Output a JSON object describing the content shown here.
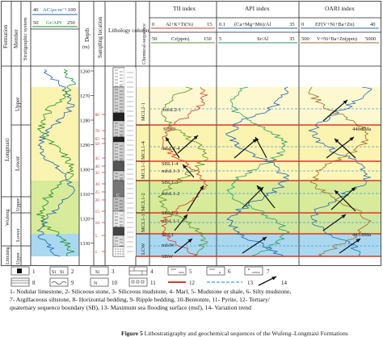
{
  "header": {
    "stratigraphic_system": "Stratigraphic system",
    "formation": "Formation",
    "member": "Member",
    "depth": "Depth",
    "depth_unit": "(m)",
    "sampling": "Sampling location",
    "lithology": "Lithology column",
    "chem_seq": "Chemical-sequence",
    "ac_label": "AC/μs·m⁻¹",
    "ac_min": "40",
    "ac_max": "100",
    "gr_label": "Gr/API",
    "gr_min": "50",
    "gr_max": "250"
  },
  "panels": [
    {
      "title": "TII index",
      "row1_left": "0",
      "row1_label": "Al+K+Ti(%)",
      "row1_right": "15",
      "row2_left": "50",
      "row2_label": "Cr(ppm)",
      "row2_right": "150"
    },
    {
      "title": "API index",
      "row1_left": "0.1",
      "row1_label": "(Ca+Mg+Mn)/Al",
      "row1_right": "35",
      "row2_left": "5",
      "row2_label": "Sr/Al",
      "row2_right": "35"
    },
    {
      "title": "OARI index",
      "row1_left": "0",
      "row1_label": "EF(V+Ni+Ba+Zn)",
      "row1_right": "40",
      "row2_left": "500",
      "row2_label": "V+Ni+Ba+Zn(ppm)",
      "row2_right": "5000"
    }
  ],
  "units": {
    "upper_longmaxi": "Upper",
    "longmaxi": "Longmaxi",
    "lower_longmaxi": "Lower",
    "wufeng_upper": "Upper",
    "wufeng": "Wufeng",
    "wufeng_lower": "Lower",
    "linxiang": "Linxiang",
    "linxiang_upper": "Upper"
  },
  "depths": [
    "1260",
    "1270",
    "1280",
    "1290",
    "1300",
    "1310",
    "1320",
    "1330"
  ],
  "samples": [
    "80",
    "70",
    "65",
    "50",
    "45",
    "40",
    "35",
    "30",
    "25",
    "20",
    "15",
    "10",
    "5",
    "1"
  ],
  "sequences": {
    "mcl2_1": "MCL2-1",
    "mcl1_4": "MCL1-4",
    "mcl1_3": "MCL1-3",
    "mcl1_2": "MCL1-2",
    "mcl1_1": "MCL1-1",
    "lcw": "LCW"
  },
  "boundaries": {
    "mfsl2_1": "mfsL2-1",
    "sbl2": "SBL2",
    "mfsl1_4": "mfsL1-4",
    "sbl1_4": "SBL1-4",
    "mfsl1_3": "mfsL1-3",
    "sbl1_3": "SBL1-3",
    "mfsl1_2": "mfsL1-2",
    "sbl1_2": "SBL1-2",
    "mfsl1_1": "mfsL1-1",
    "sbl1": "SBL1",
    "mfsw": "mfsW",
    "sbw": "SBW"
  },
  "ages": {
    "a440": "440.8Ma",
    "a443": "443.8Ma"
  },
  "lith_marks": {
    "c1": "C",
    "c2": "C",
    "c3": "C",
    "ca": "Ca",
    "ca2": "Ca",
    "c4": "C"
  },
  "legend": {
    "n1": "1",
    "n2": "2",
    "n3": "3",
    "n4": "4",
    "n5": "5",
    "n6": "6",
    "n7": "7",
    "n8": "8",
    "n9": "9",
    "n10": "10",
    "n11": "11",
    "n12": "12",
    "n13": "13",
    "n14": "14",
    "si1": "Si",
    "si2": "Si"
  },
  "caption": {
    "line1": "1- Nodular limestone, 2- Siliceous stone, 3- Siliceous mudstone, 4- Marl, 5- Mudstone or shale, 6- Silty mudstone,",
    "line2": "7- Argillaceous siltstone, 8- Horizontal bedding, 9- Ripple bedding, 10-Bentonite, 11- Pyrite, 12- Tertiary/",
    "line3": "quaternary sequence boundary (SB), 13- Maximum sea flooding surface (msf), 14- Variation trend",
    "fig_label": "Figure 5",
    "fig_text": "Lithostratigraphy and geochemical sequences of the Wufeng–Longmaxi Formations"
  },
  "colors": {
    "yellow_band": "#fbf3b0",
    "yellow_light": "#fdf8cf",
    "green_band": "#d8eb9a",
    "blue_band": "#a9d8f0",
    "sb_line": "#d63a2a",
    "mfs_line": "#4b9bd6"
  }
}
